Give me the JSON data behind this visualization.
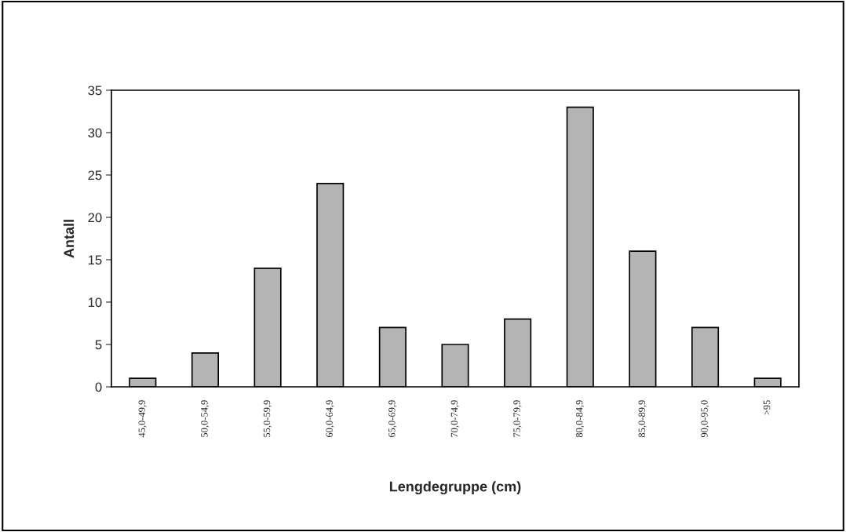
{
  "chart_data": {
    "type": "bar",
    "xlabel": "Lengdegruppe (cm)",
    "ylabel": "Antall",
    "categories": [
      "45,0-49,9",
      "50,0-54,9",
      "55,0-59,9",
      "60,0-64,9",
      "65,0-69,9",
      "70,0-74,9",
      "75,0-79,9",
      "80,0-84,9",
      "85,0-89,9",
      "90,0-95,0",
      ">95"
    ],
    "values": [
      1,
      4,
      14,
      24,
      7,
      5,
      8,
      33,
      16,
      7,
      1
    ],
    "color": "#b4b4b4",
    "ylim": [
      0,
      35
    ],
    "yticks": [
      0,
      5,
      10,
      15,
      20,
      25,
      30,
      35
    ],
    "grid": false,
    "legend": false
  }
}
